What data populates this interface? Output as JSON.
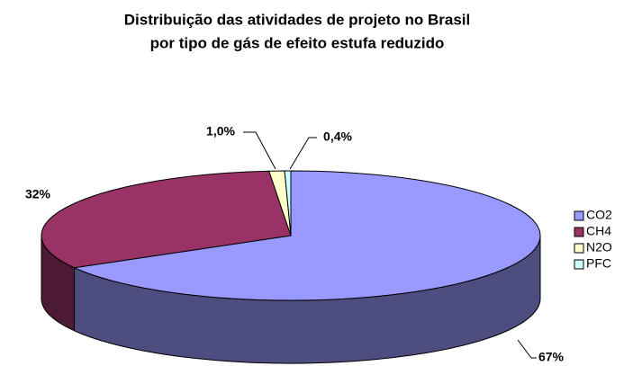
{
  "chart_data": {
    "type": "pie3d",
    "title": [
      "Distribuição das atividades de projeto no Brasil",
      "por tipo de gás de efeito estufa reduzido"
    ],
    "categories": [
      "CO2",
      "CH4",
      "N2O",
      "PFC"
    ],
    "values": [
      67,
      32,
      1.0,
      0.4
    ],
    "value_labels": [
      "67%",
      "32%",
      "1,0%",
      "0,4%"
    ],
    "colors": [
      "#9999ff",
      "#993366",
      "#ffffcc",
      "#ccffff"
    ],
    "legend": "right"
  }
}
